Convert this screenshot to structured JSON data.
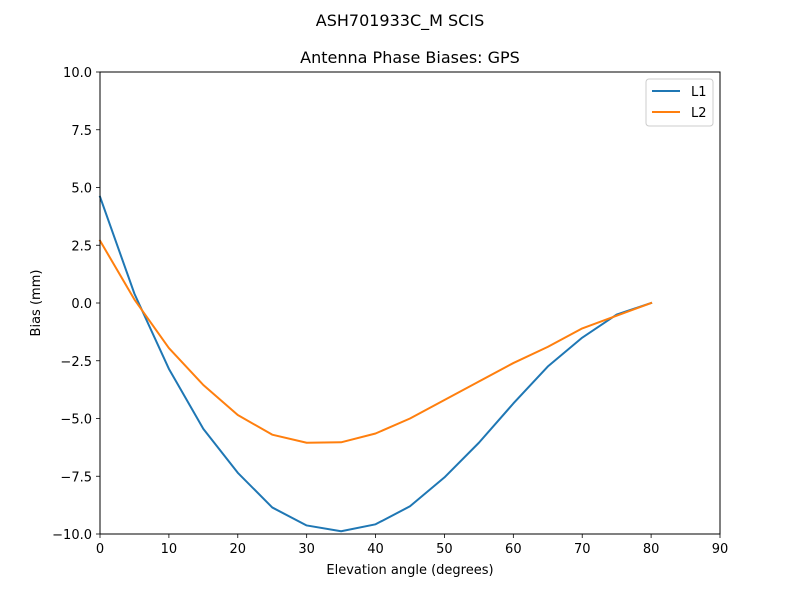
{
  "figure": {
    "suptitle": "ASH701933C_M    SCIS"
  },
  "chart_data": {
    "type": "line",
    "title": "Antenna Phase Biases: GPS",
    "xlabel": "Elevation angle (degrees)",
    "ylabel": "Bias (mm)",
    "xlim": [
      0,
      90
    ],
    "ylim": [
      -10,
      10
    ],
    "xticks": [
      0,
      10,
      20,
      30,
      40,
      50,
      60,
      70,
      80,
      90
    ],
    "yticks": [
      -10.0,
      -7.5,
      -5.0,
      -2.5,
      0.0,
      2.5,
      5.0,
      7.5,
      10.0
    ],
    "xtick_labels": [
      "0",
      "10",
      "20",
      "30",
      "40",
      "50",
      "60",
      "70",
      "80",
      "90"
    ],
    "ytick_labels": [
      "−10.0",
      "−7.5",
      "−5.0",
      "−2.5",
      "0.0",
      "2.5",
      "5.0",
      "7.5",
      "10.0"
    ],
    "grid": false,
    "legend_position": "top-right",
    "x": [
      0,
      5,
      10,
      15,
      20,
      25,
      30,
      35,
      40,
      45,
      50,
      55,
      60,
      65,
      70,
      75,
      80
    ],
    "series": [
      {
        "name": "L1",
        "color": "#1f77b4",
        "values": [
          4.6,
          0.4,
          -2.85,
          -5.45,
          -7.35,
          -8.85,
          -9.63,
          -9.88,
          -9.58,
          -8.8,
          -7.55,
          -6.05,
          -4.35,
          -2.75,
          -1.5,
          -0.5,
          0.0
        ]
      },
      {
        "name": "L2",
        "color": "#ff7f0e",
        "values": [
          2.7,
          0.15,
          -1.95,
          -3.55,
          -4.85,
          -5.7,
          -6.05,
          -6.03,
          -5.65,
          -5.0,
          -4.2,
          -3.4,
          -2.6,
          -1.9,
          -1.1,
          -0.55,
          0.0
        ]
      }
    ]
  }
}
